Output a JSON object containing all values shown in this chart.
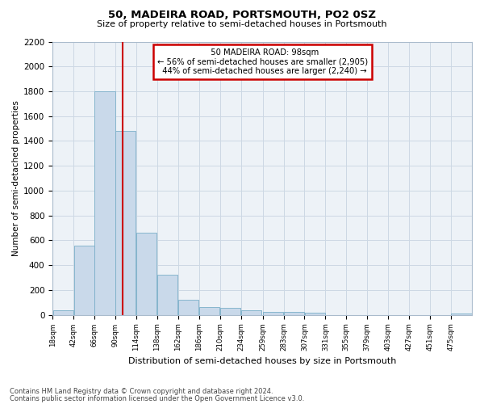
{
  "title": "50, MADEIRA ROAD, PORTSMOUTH, PO2 0SZ",
  "subtitle": "Size of property relative to semi-detached houses in Portsmouth",
  "xlabel": "Distribution of semi-detached houses by size in Portsmouth",
  "ylabel": "Number of semi-detached properties",
  "property_size": 98,
  "property_label": "50 MADEIRA ROAD: 98sqm",
  "pct_smaller": 56,
  "count_smaller": 2905,
  "pct_larger": 44,
  "count_larger": 2240,
  "bin_starts": [
    18,
    42,
    66,
    90,
    114,
    138,
    162,
    186,
    210,
    234,
    259,
    283,
    307,
    331,
    355,
    379,
    403,
    427,
    451,
    475
  ],
  "bin_width": 24,
  "values": [
    35,
    560,
    1800,
    1480,
    660,
    325,
    120,
    65,
    55,
    35,
    25,
    20,
    15,
    0,
    0,
    0,
    0,
    0,
    0,
    10
  ],
  "bar_color": "#c9d9ea",
  "bar_edge_color": "#7aafc8",
  "vline_color": "#cc0000",
  "annot_box_color": "#cc0000",
  "grid_color": "#ccd8e4",
  "background_color": "#edf2f7",
  "ylim": [
    0,
    2200
  ],
  "yticks": [
    0,
    200,
    400,
    600,
    800,
    1000,
    1200,
    1400,
    1600,
    1800,
    2000,
    2200
  ],
  "footnote_line1": "Contains HM Land Registry data © Crown copyright and database right 2024.",
  "footnote_line2": "Contains public sector information licensed under the Open Government Licence v3.0."
}
